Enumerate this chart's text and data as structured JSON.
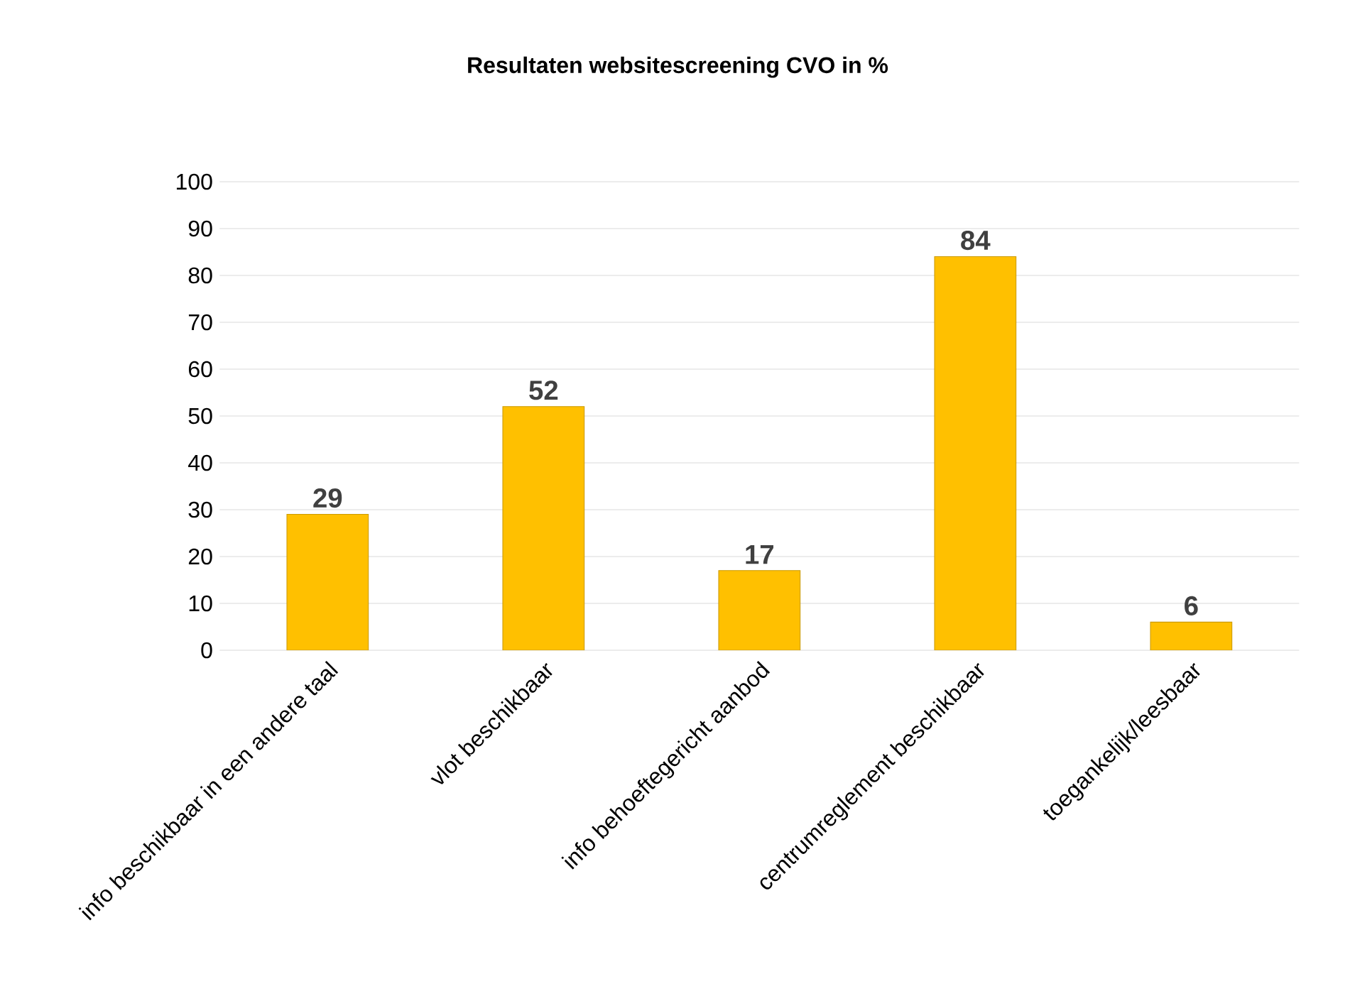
{
  "chart_data": {
    "type": "bar",
    "title": "Resultaten websitescreening CVO in %",
    "categories": [
      "info beschikbaar in een andere taal",
      "vlot beschikbaar",
      "info behoeftegericht aanbod",
      "centrumreglement beschikbaar",
      "toegankelijk/leesbaar"
    ],
    "values": [
      29,
      52,
      17,
      84,
      6
    ],
    "color": "#ffc000",
    "data_labels": true,
    "grid": "y",
    "ylim": [
      0,
      100
    ],
    "yticks": [
      0,
      10,
      20,
      30,
      40,
      50,
      60,
      70,
      80,
      90,
      100
    ]
  }
}
